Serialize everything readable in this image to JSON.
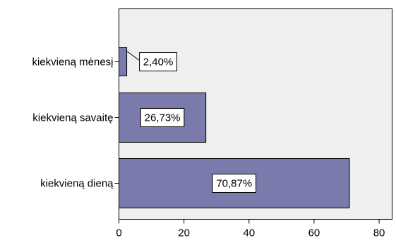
{
  "chart_data": {
    "type": "bar",
    "orientation": "horizontal",
    "categories": [
      "kiekvieną mėnesį",
      "kiekvieną savaitę",
      "kiekvieną dieną"
    ],
    "values": [
      2.4,
      26.73,
      70.87
    ],
    "data_labels": [
      "2,40%",
      "26,73%",
      "70,87%"
    ],
    "xlim": [
      0,
      84
    ],
    "xticks": [
      0,
      20,
      40,
      60,
      80
    ],
    "xtick_labels": [
      "0",
      "20",
      "40",
      "60",
      "80"
    ],
    "title": "",
    "xlabel": "",
    "ylabel": "",
    "grid": false,
    "colors": {
      "bar_fill": "#7b7aac",
      "bar_stroke": "#000000",
      "plot_background": "#efefef",
      "label_box_fill": "#ffffff"
    }
  }
}
